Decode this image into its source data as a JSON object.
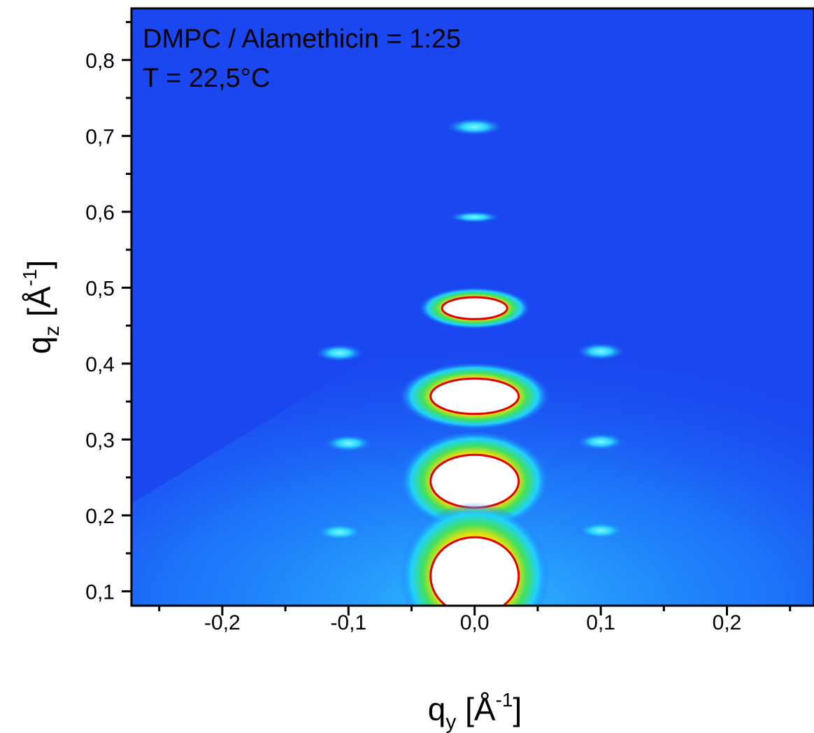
{
  "chart_data": {
    "type": "heatmap",
    "annotations": [
      "DMPC / Alamethicin = 1:25",
      "T = 22,5°C"
    ],
    "xlabel": {
      "main": "q",
      "sub": "y",
      "unit": " [Å",
      "sup": "-1",
      "close": "]"
    },
    "ylabel": {
      "main": "q",
      "sub": "z",
      "unit": " [Å",
      "sup": "-1",
      "close": "]"
    },
    "xlim": [
      -0.272,
      0.269
    ],
    "ylim": [
      0.081,
      0.868
    ],
    "xticks": [
      {
        "value": -0.2,
        "label": "-0,2"
      },
      {
        "value": -0.1,
        "label": "-0,1"
      },
      {
        "value": 0.0,
        "label": "0,0"
      },
      {
        "value": 0.1,
        "label": "0,1"
      },
      {
        "value": 0.2,
        "label": "0,2"
      }
    ],
    "yticks": [
      {
        "value": 0.1,
        "label": "0,1"
      },
      {
        "value": 0.2,
        "label": "0,2"
      },
      {
        "value": 0.3,
        "label": "0,3"
      },
      {
        "value": 0.4,
        "label": "0,4"
      },
      {
        "value": 0.5,
        "label": "0,5"
      },
      {
        "value": 0.6,
        "label": "0,6"
      },
      {
        "value": 0.7,
        "label": "0,7"
      },
      {
        "value": 0.8,
        "label": "0,8"
      }
    ],
    "xminorticks": [
      -0.25,
      -0.15,
      -0.05,
      0.05,
      0.15,
      0.25
    ],
    "yminorticks": [
      0.15,
      0.25,
      0.35,
      0.45,
      0.55,
      0.65,
      0.75,
      0.85
    ],
    "background_color": "#1a47f0",
    "peaks": {
      "x": [
        0,
        0,
        0,
        0,
        0,
        0,
        -0.107,
        0.1,
        -0.1,
        0.1,
        -0.107,
        0.1
      ],
      "y": [
        0.712,
        0.593,
        0.473,
        0.357,
        0.245,
        0.12,
        0.414,
        0.416,
        0.295,
        0.297,
        0.178,
        0.18
      ]
    }
  }
}
